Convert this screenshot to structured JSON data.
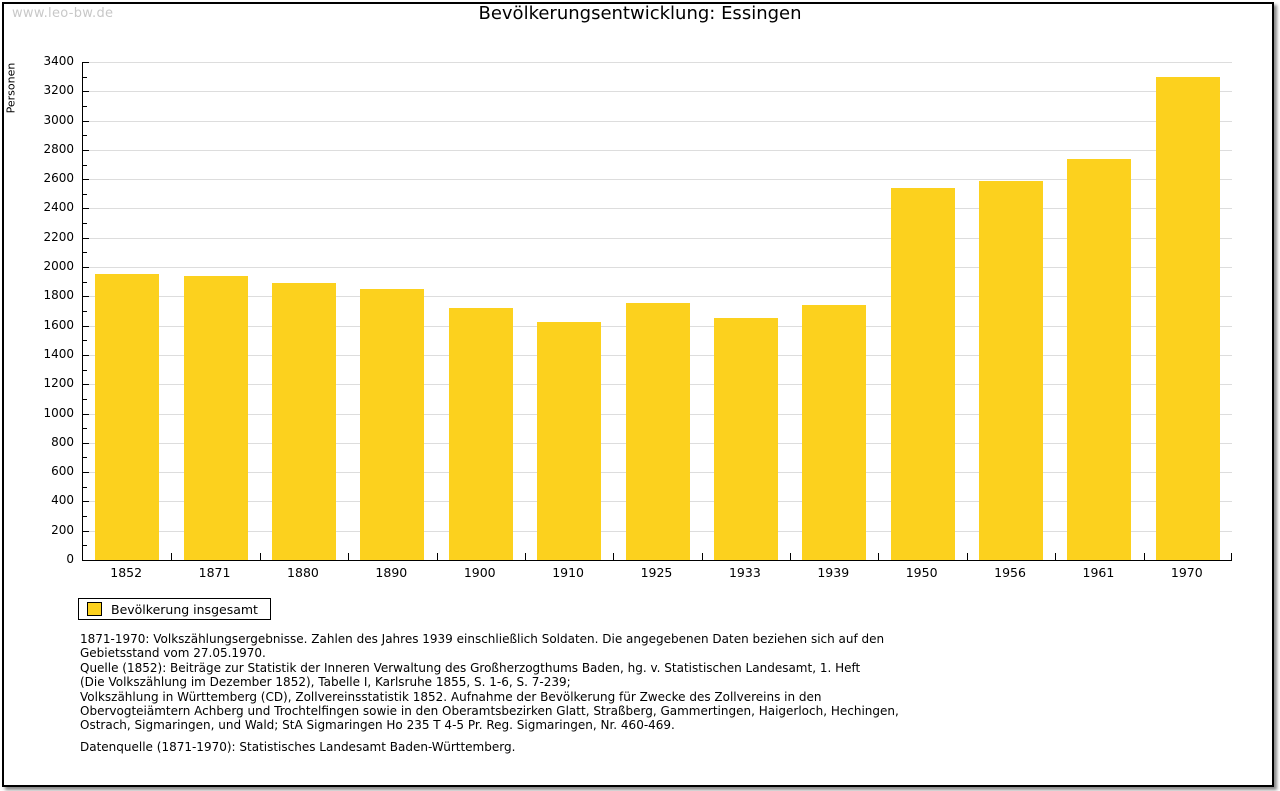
{
  "page": {
    "watermark": "www.leo-bw.de",
    "title": "Bevölkerungsentwicklung: Essingen"
  },
  "chart_data": {
    "type": "bar",
    "title": "Bevölkerungsentwicklung: Essingen",
    "ylabel": "Personen",
    "xlabel": "",
    "categories": [
      "1852",
      "1871",
      "1880",
      "1890",
      "1900",
      "1910",
      "1925",
      "1933",
      "1939",
      "1950",
      "1956",
      "1961",
      "1970"
    ],
    "values": [
      1950,
      1941,
      1890,
      1850,
      1720,
      1622,
      1752,
      1650,
      1740,
      2540,
      2590,
      2735,
      3295
    ],
    "series_name": "Bevölkerung insgesamt",
    "ylim": [
      0,
      3400
    ],
    "ytick_step": 200,
    "yminor_step": 100,
    "grid": true,
    "legend_position": "bottom-left",
    "colors": {
      "bar": "#FCD11E",
      "grid": "#DDDDDD",
      "axis": "#000000",
      "watermark": "#C8C8C8"
    }
  },
  "legend": {
    "label": "Bevölkerung insgesamt"
  },
  "footnote": {
    "lines": [
      "1871-1970: Volkszählungsergebnisse. Zahlen des Jahres 1939 einschließlich Soldaten. Die angegebenen Daten beziehen sich auf den",
      "Gebietsstand vom 27.05.1970.",
      "Quelle (1852): Beiträge zur Statistik der Inneren Verwaltung des Großherzogthums Baden, hg. v. Statistischen Landesamt, 1. Heft",
      "(Die Volkszählung im Dezember 1852), Tabelle I, Karlsruhe 1855, S. 1-6, S. 7-239;",
      "Volkszählung in Württemberg (CD), Zollvereinsstatistik 1852. Aufnahme der Bevölkerung für Zwecke des Zollvereins in den",
      "Obervogteiämtern Achberg und Trochtelfingen sowie in den Oberamtsbezirken Glatt, Straßberg, Gammertingen, Haigerloch, Hechingen,",
      "Ostrach, Sigmaringen, und Wald; StA Sigmaringen Ho 235 T 4-5 Pr. Reg. Sigmaringen, Nr. 460-469."
    ]
  },
  "datasource": "Datenquelle (1871-1970): Statistisches Landesamt Baden-Württemberg."
}
